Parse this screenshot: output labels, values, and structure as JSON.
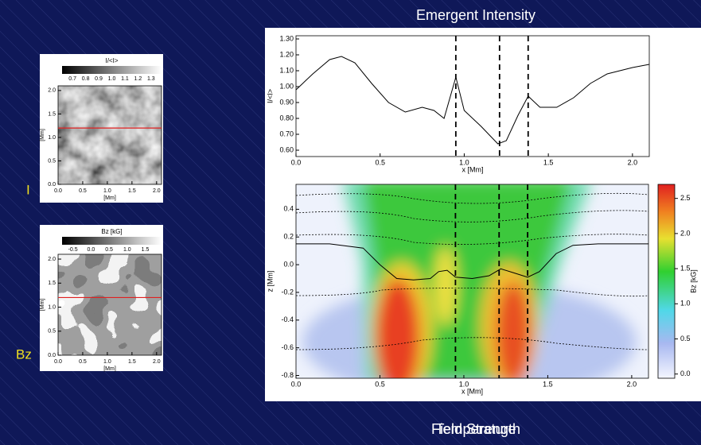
{
  "chart_data": [
    {
      "type": "line",
      "title": "Emergent Intensity",
      "x_label": "x [Mm]",
      "y_label": "I/<I>",
      "x": [
        0,
        0.1,
        0.2,
        0.27,
        0.35,
        0.45,
        0.55,
        0.65,
        0.75,
        0.82,
        0.88,
        0.95,
        1.0,
        1.1,
        1.2,
        1.25,
        1.32,
        1.38,
        1.45,
        1.55,
        1.65,
        1.75,
        1.85,
        2.0,
        2.1
      ],
      "values": [
        0.98,
        1.08,
        1.17,
        1.19,
        1.15,
        1.02,
        0.9,
        0.84,
        0.87,
        0.85,
        0.8,
        1.06,
        0.85,
        0.75,
        0.64,
        0.66,
        0.82,
        0.94,
        0.87,
        0.87,
        0.93,
        1.02,
        1.08,
        1.12,
        1.14
      ],
      "color": "#000000",
      "vlines": [
        0.95,
        1.21,
        1.38
      ],
      "xlim": [
        0,
        2.1
      ],
      "ylim": [
        0.56,
        1.32
      ],
      "xticks": [
        {
          "value": 0,
          "label": "0.0"
        },
        0.5,
        {
          "value": 1,
          "label": "1.0"
        },
        1.5,
        {
          "value": 2,
          "label": "2.0"
        }
      ],
      "yticks": [
        {
          "value": 0.6,
          "label": "0.60"
        },
        {
          "value": 0.7,
          "label": "0.70"
        },
        {
          "value": 0.8,
          "label": "0.80"
        },
        {
          "value": 0.9,
          "label": "0.90"
        },
        {
          "value": 1,
          "label": "1.00"
        },
        {
          "value": 1.1,
          "label": "1.10"
        },
        {
          "value": 1.2,
          "label": "1.20"
        },
        {
          "value": 1.3,
          "label": "1.30"
        }
      ]
    },
    {
      "type": "heatmap",
      "x_label": "x [Mm]",
      "y_label": "z [Mm]",
      "colorbar_label": "Bz [kG]",
      "x": [
        0,
        0.2,
        0.4,
        0.5,
        0.6,
        0.7,
        0.8,
        0.85,
        0.9,
        0.95,
        1.05,
        1.15,
        1.22,
        1.3,
        1.38,
        1.45,
        1.55,
        1.65,
        1.8,
        2.1
      ],
      "values": [
        0.15,
        0.15,
        0.12,
        0,
        -0.1,
        -0.11,
        -0.1,
        -0.05,
        -0.04,
        -0.09,
        -0.1,
        -0.08,
        -0.03,
        -0.06,
        -0.09,
        -0.05,
        0.08,
        0.14,
        0.15,
        0.15
      ],
      "color": "#000000",
      "vlines": [
        0.95,
        1.21,
        1.38
      ],
      "xlim": [
        0,
        2.1
      ],
      "ylim": [
        -0.82,
        0.58
      ],
      "xticks": [
        {
          "value": 0,
          "label": "0.0"
        },
        0.5,
        {
          "value": 1,
          "label": "1.0"
        },
        1.5,
        {
          "value": 2,
          "label": "2.0"
        }
      ],
      "yticks": [
        {
          "value": -0.8,
          "label": "-0.8"
        },
        {
          "value": -0.6,
          "label": "-0.6"
        },
        {
          "value": -0.4,
          "label": "-0.4"
        },
        {
          "value": -0.2,
          "label": "-0.2"
        },
        {
          "value": 0,
          "label": "0.0"
        },
        0.2,
        0.4
      ],
      "colorbar_lim": [
        -0.06,
        2.7
      ],
      "colorbar_ticks": [
        {
          "value": 0,
          "label": "0.0"
        },
        0.5,
        {
          "value": 1,
          "label": "1.0"
        },
        1.5,
        {
          "value": 2,
          "label": "2.0"
        },
        2.5
      ]
    },
    {
      "type": "image",
      "label": "I",
      "colorbar_label": "I/<I>",
      "x_label": "[Mm]",
      "y_label": "[Mm]",
      "colorbar_lim": [
        0.62,
        1.38
      ],
      "colorbar_ticks": [
        0.7,
        0.8,
        0.9,
        {
          "value": 1,
          "label": "1.0"
        },
        1.1,
        1.2,
        1.3
      ],
      "xlim": [
        0,
        2.1
      ],
      "ylim": [
        0,
        2.1
      ],
      "xticks": [
        {
          "value": 0,
          "label": "0.0"
        },
        0.5,
        {
          "value": 1,
          "label": "1.0"
        },
        1.5,
        {
          "value": 2,
          "label": "2.0"
        }
      ],
      "yticks": [
        {
          "value": 0,
          "label": "0.0"
        },
        0.5,
        {
          "value": 1,
          "label": "1.0"
        },
        1.5,
        {
          "value": 2,
          "label": "2.0"
        }
      ],
      "cut": 1.2,
      "cut_color": "#e02020"
    },
    {
      "type": "image",
      "label": "Bz",
      "colorbar_label": "Bz [kG]",
      "x_label": "[Mm]",
      "y_label": "[Mm]",
      "colorbar_lim": [
        -0.8,
        1.95
      ],
      "colorbar_ticks": [
        -0.5,
        {
          "value": 0,
          "label": "0.0"
        },
        0.5,
        {
          "value": 1,
          "label": "1.0"
        },
        1.5
      ],
      "xlim": [
        0,
        2.1
      ],
      "ylim": [
        0,
        2.1
      ],
      "xticks": [
        {
          "value": 0,
          "label": "0.0"
        },
        0.5,
        {
          "value": 1,
          "label": "1.0"
        },
        1.5,
        {
          "value": 2,
          "label": "2.0"
        }
      ],
      "yticks": [
        {
          "value": 0,
          "label": "0.0"
        },
        0.5,
        {
          "value": 1,
          "label": "1.0"
        },
        1.5,
        {
          "value": 2,
          "label": "2.0"
        }
      ],
      "cut": 1.2,
      "cut_color": "#e02020"
    }
  ],
  "footer": [
    "Temperature",
    "Field Strength"
  ]
}
